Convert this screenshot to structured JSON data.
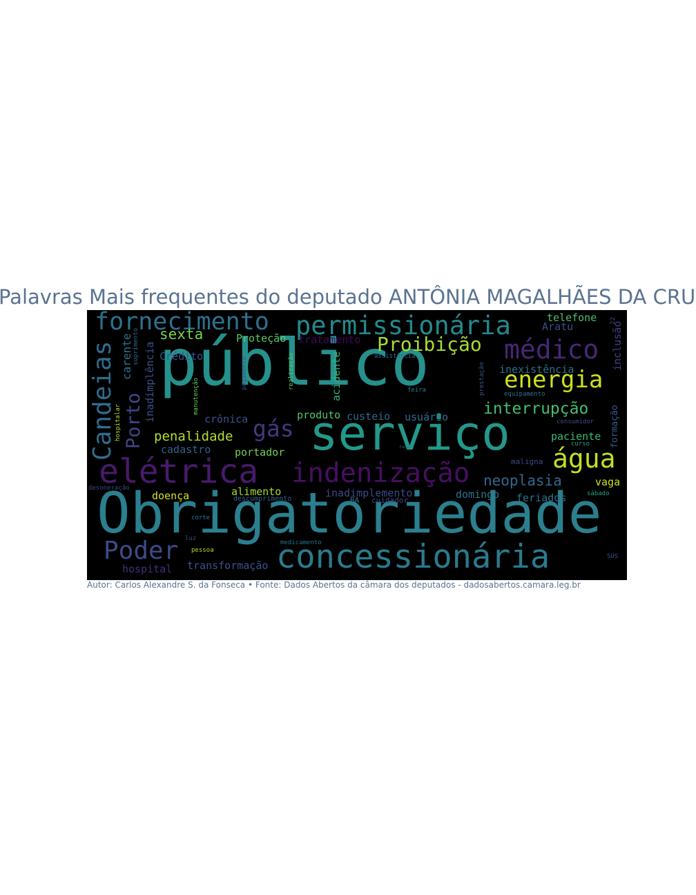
{
  "title": "Palavras Mais frequentes do deputado ANTÔNIA MAGALHÃES DA CRUZ",
  "credit": "Autor: Carlos Alexandre S. da Fonseca • Fonte: Dados Abertos da câmara dos deputados - dadosabertos.camara.leg.br",
  "colors": {
    "background": "#000000",
    "title": "#5a7390",
    "palette": [
      "#440154",
      "#3b528b",
      "#21918c",
      "#5ec962",
      "#fde725"
    ]
  },
  "words": [
    {
      "text": "público",
      "color": "#26918c"
    },
    {
      "text": "Obrigatoriedade",
      "color": "#2b7f8e"
    },
    {
      "text": "serviço",
      "color": "#22988a"
    },
    {
      "text": "concessionária",
      "color": "#2a7b8e"
    },
    {
      "text": "elétrica",
      "color": "#481a6c"
    },
    {
      "text": "indenização",
      "color": "#470f62"
    },
    {
      "text": "permissionária",
      "color": "#23898e"
    },
    {
      "text": "fornecimento",
      "color": "#2d718e"
    },
    {
      "text": "médico",
      "color": "#482777"
    },
    {
      "text": "energia",
      "color": "#cde11d"
    },
    {
      "text": "água",
      "color": "#c2df23"
    },
    {
      "text": "Poder",
      "color": "#3e4a89"
    },
    {
      "text": "Candeias",
      "color": "#2f6c8e"
    },
    {
      "text": "Proibição",
      "color": "#a8db34"
    },
    {
      "text": "Porto",
      "color": "#3f4788"
    },
    {
      "text": "gás",
      "color": "#453781"
    },
    {
      "text": "interrupção",
      "color": "#44bf70"
    },
    {
      "text": "sexta",
      "color": "#7ad151"
    },
    {
      "text": "neoplasia",
      "color": "#31688e"
    },
    {
      "text": "penalidade",
      "color": "#b5de2b"
    },
    {
      "text": "inadimplência",
      "color": "#3b528b"
    },
    {
      "text": "carente",
      "color": "#2c738e"
    },
    {
      "text": "Proteção",
      "color": "#5ec962"
    },
    {
      "text": "tratamento",
      "color": "#46085c"
    },
    {
      "text": "Crédito",
      "color": "#3a548c"
    },
    {
      "text": "telefone",
      "color": "#4ac16d"
    },
    {
      "text": "Aratu",
      "color": "#3d4d8a"
    },
    {
      "text": "inclusão",
      "color": "#424086"
    },
    {
      "text": "acidente",
      "color": "#2fb47c"
    },
    {
      "text": "inexistência",
      "color": "#2c718e"
    },
    {
      "text": "crônica",
      "color": "#3b528b"
    },
    {
      "text": "produto",
      "color": "#50c46a"
    },
    {
      "text": "custeio",
      "color": "#31688e"
    },
    {
      "text": "usuário",
      "color": "#2e6e8e"
    },
    {
      "text": "cadastro",
      "color": "#33628d"
    },
    {
      "text": "portador",
      "color": "#75d054"
    },
    {
      "text": "paciente",
      "color": "#3cbb75"
    },
    {
      "text": "formação",
      "color": "#375b8d"
    },
    {
      "text": "vaga",
      "color": "#c8e020"
    },
    {
      "text": "doença",
      "color": "#d2e21b"
    },
    {
      "text": "alimento",
      "color": "#a5db36"
    },
    {
      "text": "inadimplemento",
      "color": "#3e4989"
    },
    {
      "text": "domingo",
      "color": "#2a788e"
    },
    {
      "text": "feriados",
      "color": "#2d708e"
    },
    {
      "text": "hospital",
      "color": "#472d7b"
    },
    {
      "text": "transformação",
      "color": "#3a548c"
    },
    {
      "text": "maligna",
      "color": "#3f4889"
    },
    {
      "text": "consumidor",
      "color": "#3e4c8a"
    },
    {
      "text": "equipamento",
      "color": "#2a788e"
    },
    {
      "text": "assistência",
      "color": "#2c728e"
    },
    {
      "text": "feira",
      "color": "#26828e"
    },
    {
      "text": "suprimento",
      "color": "#31688e"
    },
    {
      "text": "sábado",
      "color": "#22a884"
    },
    {
      "text": "BA",
      "color": "#2d708e"
    },
    {
      "text": "cuidador",
      "color": "#3e4c8a"
    },
    {
      "text": "descumprimento",
      "color": "#33638d"
    },
    {
      "text": "medicamento",
      "color": "#2c728e"
    },
    {
      "text": "pessoa",
      "color": "#b2dd2d"
    },
    {
      "text": "luz",
      "color": "#404688"
    },
    {
      "text": "corte",
      "color": "#2a788e"
    },
    {
      "text": "SUS",
      "color": "#3b528b"
    },
    {
      "text": "curso",
      "color": "#20a386"
    },
    {
      "text": "hospitalar",
      "color": "#addc30"
    },
    {
      "text": "manutenção",
      "color": "#67cc5c"
    },
    {
      "text": "pagamento",
      "color": "#3a548c"
    },
    {
      "text": "realização",
      "color": "#5ec962"
    },
    {
      "text": "prestação",
      "color": "#38588c"
    },
    {
      "text": "desoneração",
      "color": "#3e4989"
    },
    {
      "text": "rural",
      "color": "#2c718e"
    },
    {
      "text": "22",
      "color": "#3b528b"
    }
  ]
}
